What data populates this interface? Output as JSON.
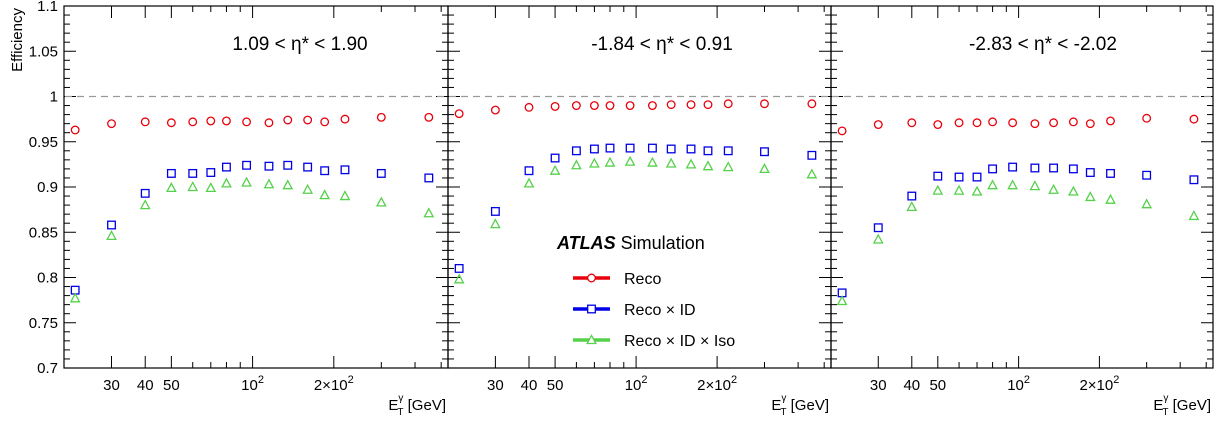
{
  "chart_data": {
    "type": "scatter",
    "x_scale": "log",
    "xlim": [
      20,
      530
    ],
    "ylim": [
      0.7,
      1.1
    ],
    "y_ticks": [
      "0.7",
      "0.75",
      "0.8",
      "0.85",
      "0.9",
      "0.95",
      "1",
      "1.05",
      "1.1"
    ],
    "x_tick_labels": [
      {
        "x": 30,
        "label": "30"
      },
      {
        "x": 40,
        "label": "40"
      },
      {
        "x": 50,
        "label": "50"
      },
      {
        "x": 100,
        "label": "10",
        "sup": "2"
      },
      {
        "x": 200,
        "label": "2×10",
        "sup": "2"
      }
    ],
    "ylabel": "Efficiency",
    "xlabel": {
      "main": "E",
      "sup": "γ",
      "sub": "T",
      "unit": " [GeV]"
    },
    "reference_line": 1,
    "experiment_label": {
      "bold": "ATLAS",
      "text": " Simulation"
    },
    "legend": [
      {
        "label": "Reco",
        "color": "#e8000b",
        "marker": "circle"
      },
      {
        "label": "Reco × ID",
        "color": "#0000e6",
        "marker": "square"
      },
      {
        "label": "Reco × ID × Iso",
        "color": "#55d14a",
        "marker": "triangle"
      }
    ],
    "x": [
      22,
      30,
      40,
      50,
      60,
      70,
      80,
      95,
      115,
      135,
      160,
      185,
      220,
      300,
      450
    ],
    "panels": [
      {
        "label": "1.09 < η* < 1.90",
        "series": [
          {
            "name": "Reco",
            "color": "#e8000b",
            "marker": "circle",
            "values": [
              0.963,
              0.97,
              0.972,
              0.971,
              0.972,
              0.973,
              0.973,
              0.972,
              0.971,
              0.974,
              0.974,
              0.972,
              0.975,
              0.977,
              0.977
            ]
          },
          {
            "name": "Reco × ID",
            "color": "#0000e6",
            "marker": "square",
            "values": [
              0.786,
              0.858,
              0.893,
              0.915,
              0.915,
              0.916,
              0.922,
              0.924,
              0.923,
              0.924,
              0.922,
              0.918,
              0.919,
              0.915,
              0.91
            ]
          },
          {
            "name": "Reco × ID × Iso",
            "color": "#55d14a",
            "marker": "triangle",
            "values": [
              0.777,
              0.846,
              0.88,
              0.899,
              0.9,
              0.899,
              0.904,
              0.905,
              0.903,
              0.902,
              0.897,
              0.891,
              0.89,
              0.883,
              0.871
            ]
          }
        ]
      },
      {
        "label": "-1.84 < η* < 0.91",
        "series": [
          {
            "name": "Reco",
            "color": "#e8000b",
            "marker": "circle",
            "values": [
              0.981,
              0.985,
              0.988,
              0.989,
              0.99,
              0.99,
              0.99,
              0.99,
              0.99,
              0.991,
              0.991,
              0.991,
              0.992,
              0.992,
              0.992
            ]
          },
          {
            "name": "Reco × ID",
            "color": "#0000e6",
            "marker": "square",
            "values": [
              0.81,
              0.873,
              0.918,
              0.932,
              0.94,
              0.942,
              0.943,
              0.943,
              0.943,
              0.942,
              0.942,
              0.94,
              0.94,
              0.939,
              0.935
            ]
          },
          {
            "name": "Reco × ID × Iso",
            "color": "#55d14a",
            "marker": "triangle",
            "values": [
              0.798,
              0.859,
              0.904,
              0.918,
              0.924,
              0.926,
              0.927,
              0.928,
              0.927,
              0.926,
              0.925,
              0.923,
              0.922,
              0.92,
              0.914
            ]
          }
        ]
      },
      {
        "label": "-2.83 < η* < -2.02",
        "series": [
          {
            "name": "Reco",
            "color": "#e8000b",
            "marker": "circle",
            "values": [
              0.962,
              0.969,
              0.971,
              0.969,
              0.971,
              0.971,
              0.972,
              0.971,
              0.97,
              0.971,
              0.972,
              0.97,
              0.973,
              0.976,
              0.975
            ]
          },
          {
            "name": "Reco × ID",
            "color": "#0000e6",
            "marker": "square",
            "values": [
              0.783,
              0.855,
              0.89,
              0.912,
              0.911,
              0.911,
              0.92,
              0.922,
              0.921,
              0.921,
              0.92,
              0.916,
              0.915,
              0.913,
              0.908
            ]
          },
          {
            "name": "Reco × ID × Iso",
            "color": "#55d14a",
            "marker": "triangle",
            "values": [
              0.774,
              0.842,
              0.878,
              0.896,
              0.896,
              0.895,
              0.902,
              0.902,
              0.901,
              0.897,
              0.895,
              0.889,
              0.886,
              0.881,
              0.868
            ]
          }
        ]
      }
    ]
  }
}
